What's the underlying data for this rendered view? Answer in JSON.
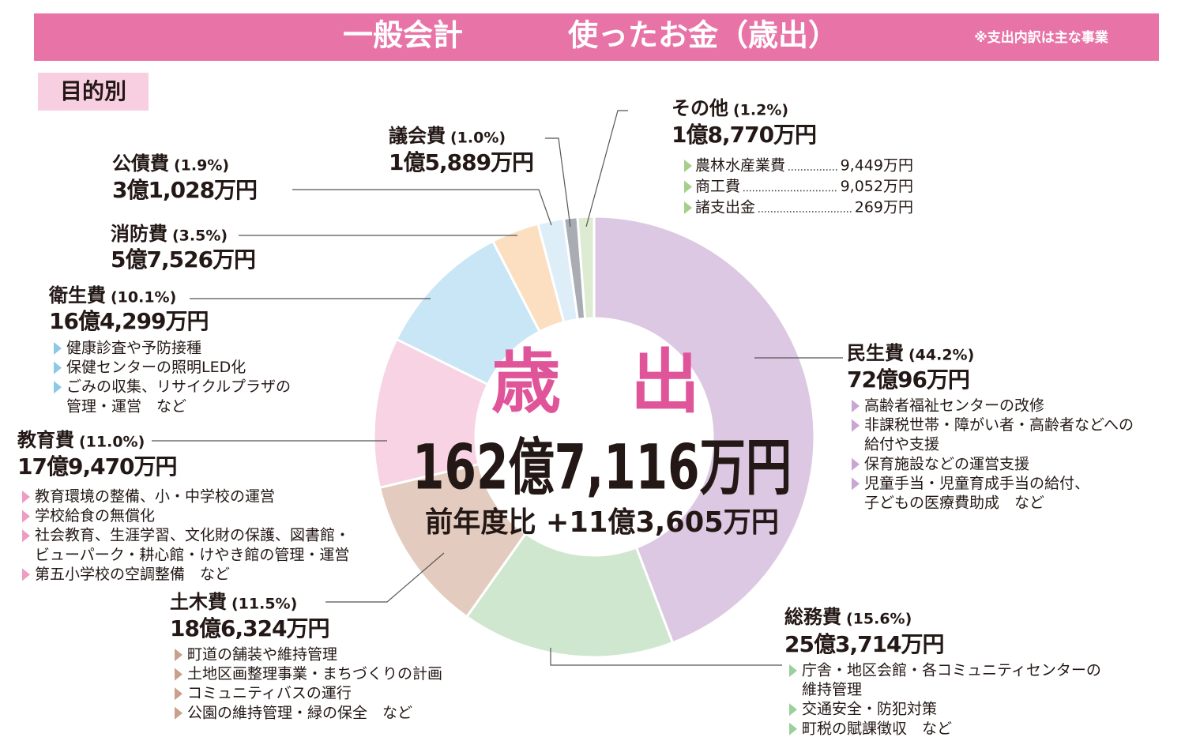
{
  "chart_data": {
    "type": "donut",
    "title": "一般会計",
    "subtitle": "使ったお金（歳出）",
    "note": "※支出内訳は主な事業",
    "badge": "目的別",
    "center_title": "歳　出",
    "center_total": "162億7,116万円",
    "center_compare": "前年度比 +11億3,605万円",
    "categories": [
      "民生費",
      "総務費",
      "土木費",
      "教育費",
      "衛生費",
      "消防費",
      "公債費",
      "議会費",
      "その他"
    ],
    "values": [
      44.2,
      15.6,
      11.5,
      11.0,
      10.1,
      3.5,
      1.9,
      1.0,
      1.2
    ],
    "value_labels": [
      "(44.2%)",
      "(15.6%)",
      "(11.5%)",
      "(11.0%)",
      "(10.1%)",
      "(3.5%)",
      "(1.9%)",
      "(1.0%)",
      "(1.2%)"
    ],
    "colors": [
      "#dcc8e2",
      "#cfe6cf",
      "#e3cbbf",
      "#f7d3e3",
      "#c8e6f5",
      "#fbdfc0",
      "#ddeef9",
      "#a9adb3",
      "#dcebd2"
    ],
    "amounts": [
      "72億96万円",
      "25億3,714万円",
      "18億6,324万円",
      "17億9,470万円",
      "16億4,299万円",
      "5億7,526万円",
      "3億1,028万円",
      "1億5,889万円",
      "1億8,770万円"
    ],
    "details": [
      [
        [
          "高齢者福祉センターの改修"
        ],
        [
          "非課税世帯・障がい者・高齢者などへの",
          "給付や支援"
        ],
        [
          "保育施設などの運営支援"
        ],
        [
          "児童手当・児童育成手当の給付、",
          "子どもの医療費助成　など"
        ]
      ],
      [
        [
          "庁舎・地区会館・各コミュニティセンターの",
          "維持管理"
        ],
        [
          "交通安全・防犯対策"
        ],
        [
          "町税の賦課徴収　など"
        ]
      ],
      [
        [
          "町道の舗装や維持管理"
        ],
        [
          "土地区画整理事業・まちづくりの計画"
        ],
        [
          "コミュニティバスの運行"
        ],
        [
          "公園の維持管理・緑の保全　など"
        ]
      ],
      [
        [
          "教育環境の整備、小・中学校の運営"
        ],
        [
          "学校給食の無償化"
        ],
        [
          "社会教育、生涯学習、文化財の保護、図書館・",
          "ビューパーク・耕心館・けやき館の管理・運営"
        ],
        [
          "第五小学校の空調整備　など"
        ]
      ],
      [
        [
          "健康診査や予防接種"
        ],
        [
          "保健センターの照明LED化"
        ],
        [
          "ごみの収集、リサイクルプラザの",
          "管理・運営　など"
        ]
      ],
      [],
      [],
      [],
      []
    ],
    "other_breakdown": [
      {
        "name": "農林水産業費",
        "amount": "9,449万円"
      },
      {
        "name": "商工費",
        "amount": "9,052万円"
      },
      {
        "name": "諸支出金",
        "amount": "269万円"
      }
    ]
  }
}
